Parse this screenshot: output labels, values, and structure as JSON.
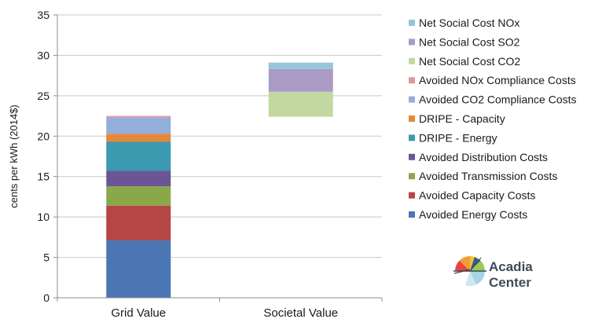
{
  "chart_data": {
    "type": "bar",
    "stacked": true,
    "categories": [
      "Grid Value",
      "Societal Value"
    ],
    "ylabel": "cents per kWh (2014$)",
    "ylim": [
      0,
      35
    ],
    "yticks": [
      0,
      5,
      10,
      15,
      20,
      25,
      30,
      35
    ],
    "grid": true,
    "legend_position": "right",
    "series": [
      {
        "name": "Avoided Energy Costs",
        "color": "#4a77b4",
        "values": [
          7.1,
          0
        ]
      },
      {
        "name": "Avoided Capacity Costs",
        "color": "#b64545",
        "values": [
          4.3,
          0
        ]
      },
      {
        "name": "Avoided Transmission Costs",
        "color": "#8aa84a",
        "values": [
          2.4,
          0
        ]
      },
      {
        "name": "Avoided Distribution Costs",
        "color": "#6b5596",
        "values": [
          1.9,
          0
        ]
      },
      {
        "name": "DRIPE - Energy",
        "color": "#3b9aaf",
        "values": [
          3.6,
          0
        ]
      },
      {
        "name": "DRIPE - Capacity",
        "color": "#e4893a",
        "values": [
          1.0,
          0
        ]
      },
      {
        "name": "Avoided CO2 Compliance Costs",
        "color": "#93aedb",
        "values": [
          2.0,
          0
        ]
      },
      {
        "name": "Avoided NOx Compliance Costs",
        "color": "#dd9999",
        "values": [
          0.2,
          0
        ]
      },
      {
        "name": "Net Social Cost CO2",
        "color": "#c2d8a0",
        "values": [
          0,
          3.1
        ]
      },
      {
        "name": "Net Social Cost SO2",
        "color": "#ab9ac4",
        "values": [
          0,
          2.8
        ]
      },
      {
        "name": "Net Social Cost NOx",
        "color": "#93c6d9",
        "values": [
          0,
          0.8
        ]
      }
    ],
    "base_offsets": [
      0,
      22.4
    ],
    "legend_order": [
      "Net Social Cost NOx",
      "Net Social Cost SO2",
      "Net Social Cost CO2",
      "Avoided NOx Compliance Costs",
      "Avoided CO2 Compliance Costs",
      "DRIPE - Capacity",
      "DRIPE - Energy",
      "Avoided Distribution Costs",
      "Avoided Transmission Costs",
      "Avoided Capacity Costs",
      "Avoided Energy Costs"
    ]
  },
  "logo": {
    "line1": "Acadia",
    "line2": "Center"
  }
}
